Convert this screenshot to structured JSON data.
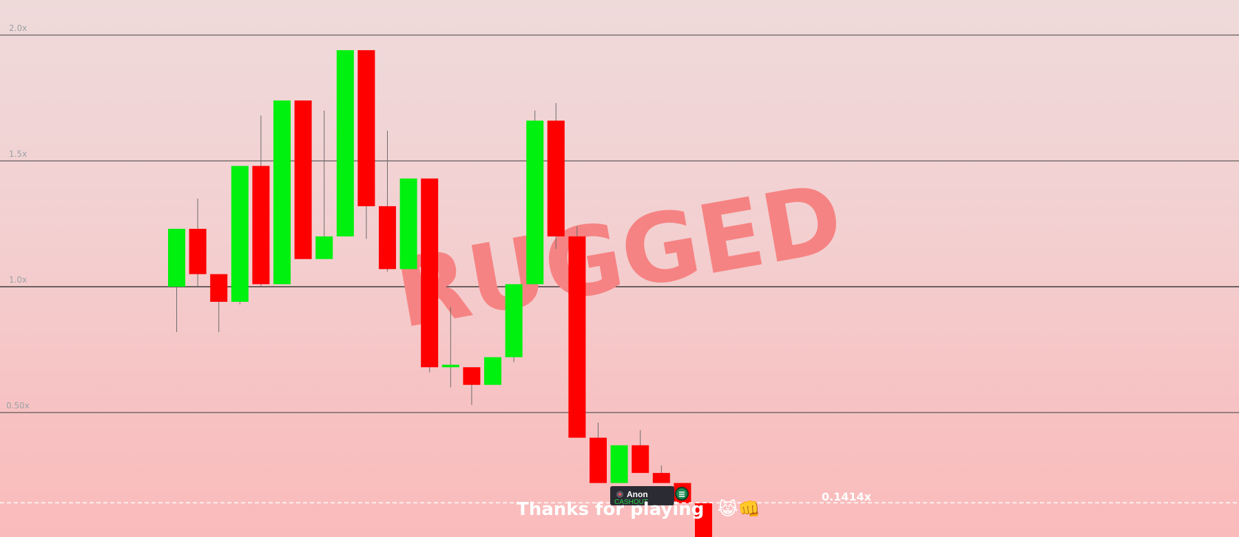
{
  "chart_data": {
    "type": "candlestick",
    "y_ticks": [
      "2.0x",
      "1.5x",
      "1.0x",
      "0.50x"
    ],
    "y_tick_values": [
      2.0,
      1.5,
      1.0,
      0.5
    ],
    "ylim": [
      0.0,
      2.15
    ],
    "grid": true,
    "current_multiplier": 0.1414,
    "current_multiplier_label": "0.1414x",
    "colors": {
      "up": "#00f010",
      "down": "#ff0000"
    },
    "candles": [
      {
        "open": 1.0,
        "close": 1.23,
        "high": 1.23,
        "low": 0.82
      },
      {
        "open": 1.23,
        "close": 1.05,
        "high": 1.35,
        "low": 1.0
      },
      {
        "open": 1.05,
        "close": 0.94,
        "high": 1.05,
        "low": 0.82
      },
      {
        "open": 0.94,
        "close": 1.48,
        "high": 1.48,
        "low": 0.93
      },
      {
        "open": 1.48,
        "close": 1.01,
        "high": 1.68,
        "low": 1.0
      },
      {
        "open": 1.01,
        "close": 1.74,
        "high": 1.74,
        "low": 1.01
      },
      {
        "open": 1.74,
        "close": 1.11,
        "high": 1.74,
        "low": 1.11
      },
      {
        "open": 1.11,
        "close": 1.2,
        "high": 1.7,
        "low": 1.11
      },
      {
        "open": 1.2,
        "close": 1.94,
        "high": 1.94,
        "low": 1.2
      },
      {
        "open": 1.94,
        "close": 1.32,
        "high": 1.94,
        "low": 1.19
      },
      {
        "open": 1.32,
        "close": 1.07,
        "high": 1.62,
        "low": 1.06
      },
      {
        "open": 1.07,
        "close": 1.43,
        "high": 1.43,
        "low": 1.07
      },
      {
        "open": 1.43,
        "close": 0.68,
        "high": 1.43,
        "low": 0.66
      },
      {
        "open": 0.68,
        "close": 0.69,
        "high": 0.92,
        "low": 0.6
      },
      {
        "open": 0.68,
        "close": 0.61,
        "high": 0.68,
        "low": 0.53
      },
      {
        "open": 0.61,
        "close": 0.72,
        "high": 0.72,
        "low": 0.61
      },
      {
        "open": 0.72,
        "close": 1.01,
        "high": 1.01,
        "low": 0.7
      },
      {
        "open": 1.01,
        "close": 1.66,
        "high": 1.7,
        "low": 1.01
      },
      {
        "open": 1.66,
        "close": 1.2,
        "high": 1.73,
        "low": 1.15
      },
      {
        "open": 1.2,
        "close": 0.4,
        "high": 1.24,
        "low": 0.4
      },
      {
        "open": 0.4,
        "close": 0.22,
        "high": 0.46,
        "low": 0.22
      },
      {
        "open": 0.22,
        "close": 0.37,
        "high": 0.37,
        "low": 0.22
      },
      {
        "open": 0.37,
        "close": 0.26,
        "high": 0.43,
        "low": 0.26
      },
      {
        "open": 0.26,
        "close": 0.22,
        "high": 0.29,
        "low": 0.22
      },
      {
        "open": 0.22,
        "close": 0.14,
        "high": 0.22,
        "low": 0.14
      },
      {
        "open": 0.14,
        "close": 0.0,
        "high": 0.14,
        "low": 0.0
      }
    ]
  },
  "overlay": {
    "rugged_text": "RUGGED",
    "thanks_text": "Thanks for playing",
    "thanks_emoji": "😹👊"
  },
  "tooltip": {
    "name": "Anon",
    "subtext": "CASHOUT",
    "icon": "coin-icon",
    "avatar": "avatar-icon"
  }
}
